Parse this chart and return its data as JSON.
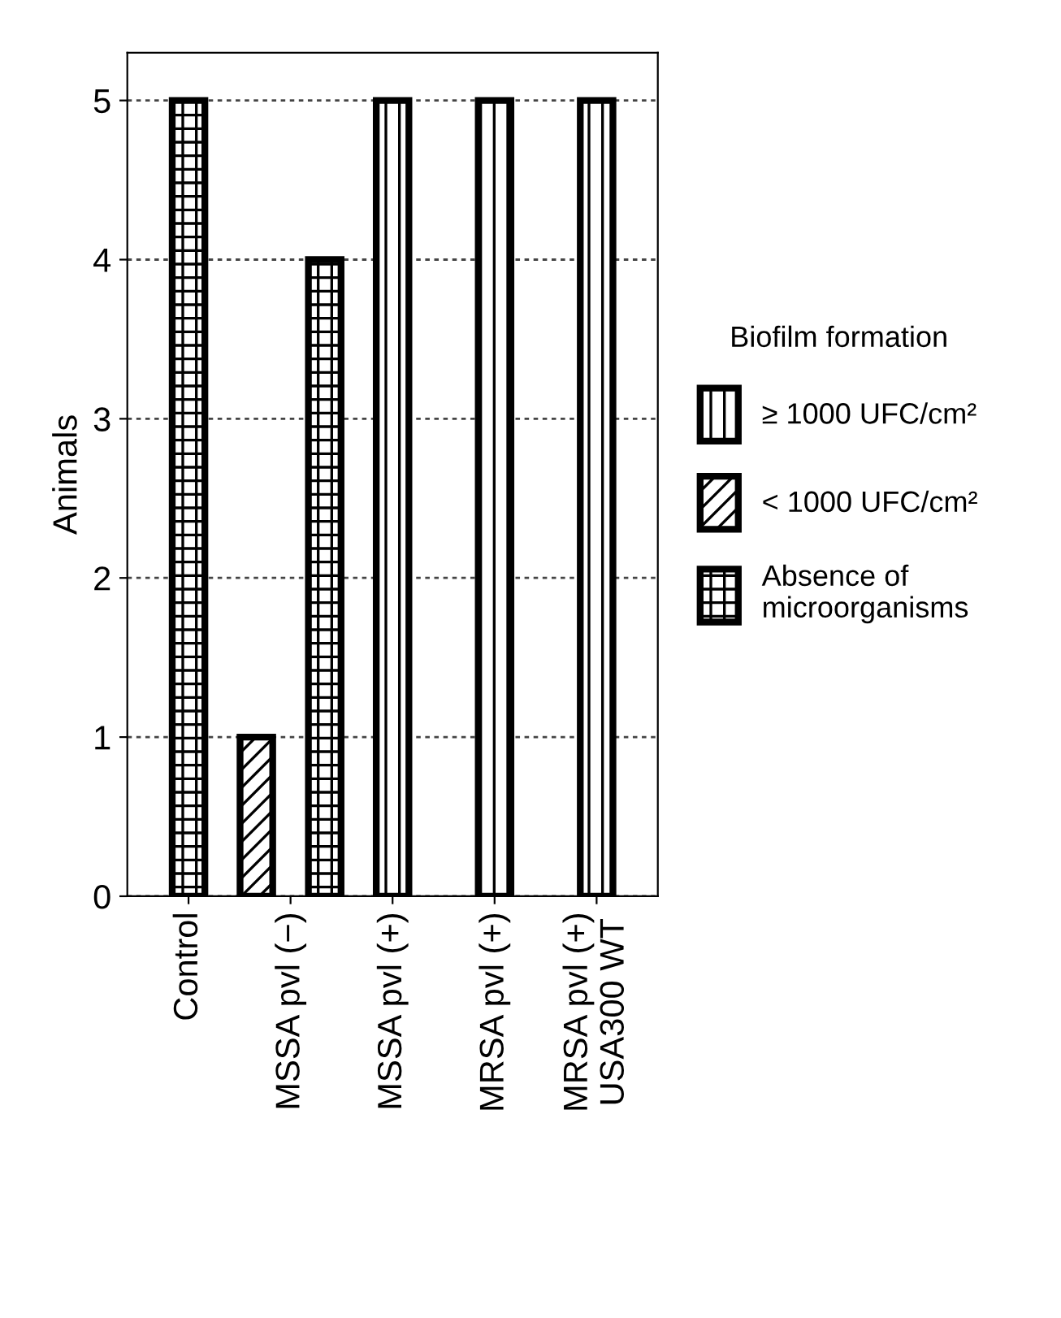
{
  "chart_data": {
    "type": "bar",
    "ylabel": "Animals",
    "legend_title": "Biofilm formation",
    "categories": [
      "Control",
      "MSSA pvl (−)",
      "MSSA pvl (+)",
      "MRSA pvl (+)",
      "MRSA pvl (+)\nUSA300 WT"
    ],
    "series": [
      {
        "name": "≥ 1000 UFC/cm²",
        "color": "#000000",
        "values": [
          null,
          null,
          5,
          5,
          5
        ]
      },
      {
        "name": "< 1000 UFC/cm²",
        "color": "#000000",
        "values": [
          null,
          1,
          null,
          null,
          null
        ]
      },
      {
        "name": "Absence of\nmicroorganisms",
        "color": "#000000",
        "values": [
          5,
          4,
          null,
          null,
          null
        ]
      }
    ],
    "ylim": [
      0,
      5.3
    ],
    "yticks": [
      0,
      1,
      2,
      3,
      4,
      5
    ],
    "grid": "y",
    "legend": "right"
  }
}
